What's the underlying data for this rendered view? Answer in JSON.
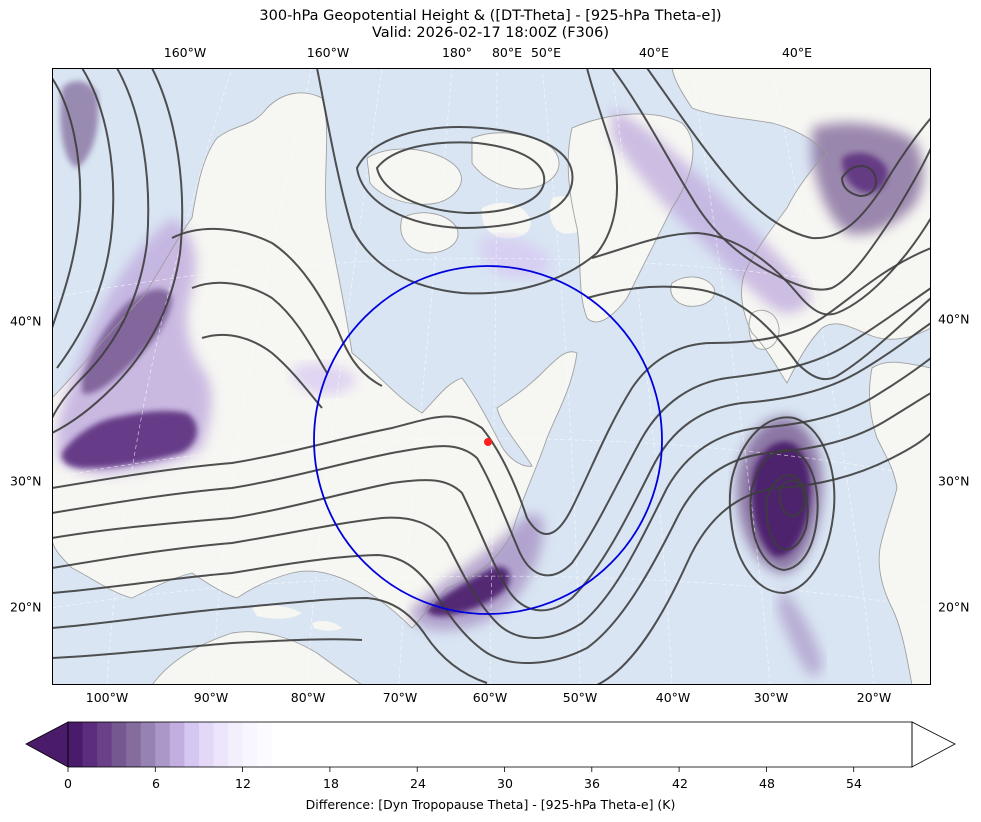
{
  "title": {
    "line1": "300-hPa Geopotential Height & ([DT-Theta] - [925-hPa Theta-e])",
    "line2": "Valid: 2026-02-17 18:00Z (F306)"
  },
  "axes": {
    "top_labels": [
      "160°W",
      "160°W",
      "180°",
      "80°E",
      "50°E",
      "40°E",
      "40°E"
    ],
    "bottom_labels": [
      "100°W",
      "90°W",
      "80°W",
      "70°W",
      "60°W",
      "50°W",
      "40°W",
      "30°W",
      "20°W"
    ],
    "left_labels": [
      "40°N",
      "30°N",
      "20°N"
    ],
    "right_labels": [
      "40°N",
      "30°N",
      "20°N"
    ]
  },
  "colorbar": {
    "label": "Difference: [Dyn Tropopause Theta] - [925-hPa Theta-e] (K)",
    "ticks": [
      "0",
      "6",
      "12",
      "18",
      "24",
      "30",
      "36",
      "42",
      "48",
      "54"
    ],
    "colors": [
      "#4a1a6b",
      "#5c2d7e",
      "#6a4189",
      "#765891",
      "#846c9c",
      "#9682b3",
      "#ab98c8",
      "#c2afdf",
      "#d6c6f2",
      "#e3d8f8",
      "#ece5fb",
      "#f3effd",
      "#f8f6fe",
      "#fcfbff"
    ],
    "extend": "both"
  },
  "map": {
    "ocean_color": "#d9e5f3",
    "land_color": "#f6f6f2",
    "contour_color": "#3d3d3d",
    "circle_color": "#0000dd",
    "marker_color": "#ff2020"
  }
}
